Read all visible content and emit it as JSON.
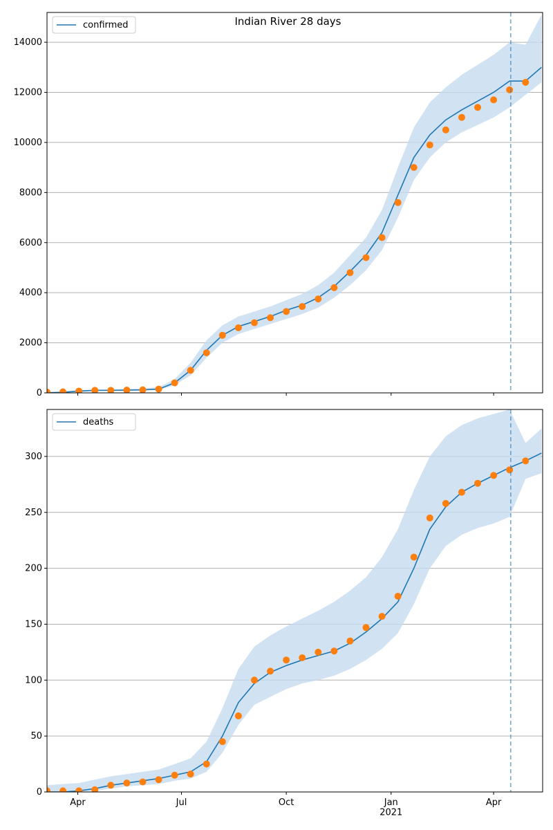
{
  "chart_data": [
    {
      "type": "line",
      "title": "Indian River 28 days",
      "x": [
        0,
        14,
        28,
        42,
        56,
        70,
        84,
        98,
        112,
        126,
        140,
        154,
        168,
        182,
        196,
        210,
        224,
        238,
        252,
        266,
        280,
        294,
        308,
        322,
        336,
        350,
        364,
        378,
        392,
        406,
        420,
        434
      ],
      "xlim": [
        0,
        435
      ],
      "xticks": [
        27,
        118,
        210,
        302,
        392
      ],
      "ylim": [
        0,
        15190
      ],
      "yticks": [
        0,
        2000,
        4000,
        6000,
        8000,
        10000,
        12000,
        14000
      ],
      "grid": true,
      "legend": "upper left",
      "vline": 407,
      "band": {
        "color": "#c6dbef",
        "lower": [
          0,
          20,
          50,
          80,
          80,
          90,
          100,
          120,
          300,
          700,
          1400,
          2000,
          2350,
          2550,
          2750,
          2950,
          3150,
          3400,
          3800,
          4300,
          4900,
          5700,
          7000,
          8500,
          9400,
          10000,
          10400,
          10700,
          11000,
          11400,
          11900,
          12400
        ],
        "upper": [
          50,
          70,
          110,
          130,
          140,
          160,
          180,
          230,
          550,
          1200,
          2100,
          2700,
          3050,
          3250,
          3450,
          3700,
          3950,
          4300,
          4800,
          5500,
          6200,
          7300,
          9000,
          10600,
          11600,
          12200,
          12700,
          13100,
          13500,
          14000,
          13900,
          15100
        ]
      },
      "series": [
        {
          "name": "confirmed",
          "style": "line",
          "color": "#1f77b4",
          "values": [
            0,
            20,
            70,
            100,
            100,
            110,
            120,
            150,
            400,
            900,
            1700,
            2300,
            2650,
            2850,
            3050,
            3300,
            3500,
            3800,
            4250,
            4850,
            5500,
            6400,
            7900,
            9400,
            10300,
            10900,
            11300,
            11650,
            12000,
            12450,
            12450,
            13000
          ]
        },
        {
          "style": "markers",
          "color": "#ff7f0e",
          "values": [
            30,
            40,
            70,
            100,
            100,
            110,
            120,
            150,
            400,
            900,
            1600,
            2300,
            2600,
            2800,
            3000,
            3250,
            3450,
            3750,
            4200,
            4800,
            5400,
            6200,
            7600,
            9000,
            9900,
            10500,
            11000,
            11400,
            11700,
            12100,
            12400,
            null
          ]
        }
      ]
    },
    {
      "type": "line",
      "x": [
        0,
        14,
        28,
        42,
        56,
        70,
        84,
        98,
        112,
        126,
        140,
        154,
        168,
        182,
        196,
        210,
        224,
        238,
        252,
        266,
        280,
        294,
        308,
        322,
        336,
        350,
        364,
        378,
        392,
        406,
        420,
        434
      ],
      "xlim": [
        0,
        435
      ],
      "xticks": [
        {
          "value": 27,
          "label": "Apr"
        },
        {
          "value": 118,
          "label": "Jul"
        },
        {
          "value": 210,
          "label": "Oct"
        },
        {
          "value": 302,
          "label": "Jan\n2021"
        },
        {
          "value": 392,
          "label": "Apr"
        }
      ],
      "ylim": [
        0,
        342
      ],
      "yticks": [
        0,
        50,
        100,
        150,
        200,
        250,
        300
      ],
      "grid": true,
      "legend": "upper left",
      "vline": 407,
      "band": {
        "color": "#c6dbef",
        "lower": [
          0,
          0,
          0,
          1,
          3,
          5,
          6,
          7,
          10,
          12,
          18,
          35,
          60,
          78,
          85,
          92,
          97,
          100,
          104,
          110,
          118,
          128,
          142,
          168,
          200,
          220,
          230,
          236,
          240,
          246,
          280,
          285
        ],
        "upper": [
          6,
          7,
          8,
          11,
          14,
          16,
          18,
          20,
          25,
          30,
          45,
          75,
          110,
          130,
          140,
          148,
          155,
          162,
          170,
          180,
          192,
          210,
          235,
          270,
          300,
          318,
          328,
          334,
          338,
          342,
          312,
          325
        ]
      },
      "series": [
        {
          "name": "deaths",
          "style": "line",
          "color": "#1f77b4",
          "values": [
            0,
            0,
            1,
            3,
            6,
            8,
            10,
            12,
            15,
            18,
            27,
            50,
            80,
            97,
            107,
            113,
            118,
            122,
            126,
            133,
            143,
            155,
            170,
            200,
            235,
            255,
            268,
            276,
            283,
            290,
            296,
            303
          ]
        },
        {
          "style": "markers",
          "color": "#ff7f0e",
          "values": [
            1,
            1,
            1,
            2,
            6,
            8,
            9,
            11,
            15,
            16,
            25,
            45,
            68,
            100,
            108,
            118,
            120,
            125,
            126,
            135,
            147,
            157,
            175,
            210,
            245,
            258,
            268,
            276,
            283,
            288,
            296,
            null
          ]
        }
      ]
    }
  ]
}
